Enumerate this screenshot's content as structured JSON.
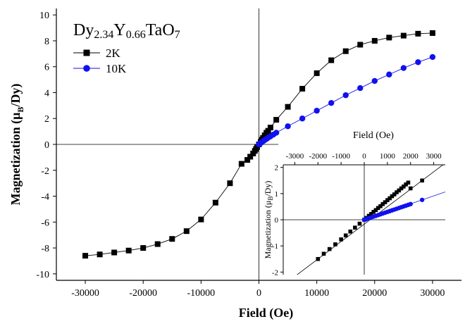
{
  "chart_data": [
    {
      "type": "line",
      "xlabel": "Field (Oe)",
      "ylabel": "Magnetization (μ_B/Dy)",
      "ylabel_main": "Magnetization (μ",
      "ylabel_sub": "B",
      "ylabel_tail": "/Dy)",
      "xlim": [
        -35000,
        35000
      ],
      "ylim": [
        -10.5,
        10.5
      ],
      "xticks": [
        -30000,
        -20000,
        -10000,
        0,
        10000,
        20000,
        30000
      ],
      "xtick_labels": [
        "-30000",
        "-20000",
        "-10000",
        "0",
        "10000",
        "20000",
        "30000"
      ],
      "yticks": [
        -10,
        -8,
        -6,
        -4,
        -2,
        0,
        2,
        4,
        6,
        8,
        10
      ],
      "ytick_labels": [
        "-10",
        "-8",
        "-6",
        "-4",
        "-2",
        "0",
        "2",
        "4",
        "6",
        "8",
        "10"
      ],
      "annotation": {
        "parts": [
          {
            "text": "Dy",
            "sub": false
          },
          {
            "text": "2.34",
            "sub": true
          },
          {
            "text": "Y",
            "sub": false
          },
          {
            "text": "0.66",
            "sub": true
          },
          {
            "text": "TaO",
            "sub": false
          },
          {
            "text": "7",
            "sub": true
          }
        ]
      },
      "legend_position": "top-left",
      "series": [
        {
          "name": "2K",
          "color": "#000000",
          "marker": "square",
          "x": [
            -30000,
            -27500,
            -25000,
            -22500,
            -20000,
            -17500,
            -15000,
            -12500,
            -10000,
            -7500,
            -5000,
            -3000,
            -2000,
            -1500,
            -1000,
            -700,
            -500,
            -300,
            0,
            300,
            500,
            700,
            1000,
            1300,
            1600,
            2000,
            3000,
            5000,
            7500,
            10000,
            12500,
            15000,
            17500,
            20000,
            22500,
            25000,
            27500,
            30000
          ],
          "y": [
            -8.6,
            -8.5,
            -8.35,
            -8.2,
            -8.0,
            -7.7,
            -7.3,
            -6.7,
            -5.8,
            -4.5,
            -3.0,
            -1.5,
            -1.2,
            -0.95,
            -0.7,
            -0.5,
            -0.35,
            -0.2,
            0.0,
            0.2,
            0.35,
            0.5,
            0.7,
            0.9,
            1.05,
            1.3,
            1.9,
            2.9,
            4.3,
            5.5,
            6.5,
            7.2,
            7.7,
            8.0,
            8.25,
            8.4,
            8.55,
            8.6
          ]
        },
        {
          "name": "10K",
          "color": "#1010f0",
          "marker": "circle",
          "x": [
            0,
            300,
            500,
            700,
            1000,
            1300,
            1600,
            2000,
            2500,
            3000,
            5000,
            7500,
            10000,
            12500,
            15000,
            17500,
            20000,
            22500,
            25000,
            27500,
            30000
          ],
          "y": [
            0.0,
            0.1,
            0.17,
            0.24,
            0.33,
            0.42,
            0.52,
            0.62,
            0.76,
            0.9,
            1.4,
            2.0,
            2.6,
            3.2,
            3.8,
            4.35,
            4.9,
            5.4,
            5.9,
            6.35,
            6.75
          ]
        }
      ]
    },
    {
      "type": "line",
      "role": "inset",
      "xlabel": "Field (Oe)",
      "ylabel": "Magnetization (μ_B/Dy)",
      "ylabel_main": "Magnetization (μ",
      "ylabel_sub": "B",
      "ylabel_tail": "/Dy)",
      "xlim": [
        -3500,
        3500
      ],
      "ylim": [
        -2.1,
        2.1
      ],
      "xticks": [
        -3000,
        -2000,
        -1000,
        0,
        1000,
        2000,
        3000
      ],
      "xtick_labels": [
        "-3000",
        "-2000",
        "-1000",
        "0",
        "1000",
        "2000",
        "3000"
      ],
      "yticks": [
        -2,
        -1,
        0,
        1,
        2
      ],
      "ytick_labels": [
        "-2",
        "-1",
        "0",
        "1",
        "2"
      ],
      "xaxis_position": "top",
      "series": [
        {
          "name": "2K",
          "color": "#000000",
          "marker": "square",
          "x": [
            -2000,
            -1750,
            -1500,
            -1250,
            -1000,
            -800,
            -600,
            -400,
            -200,
            0,
            100,
            200,
            300,
            400,
            500,
            600,
            700,
            800,
            900,
            1000,
            1100,
            1200,
            1300,
            1400,
            1500,
            1600,
            1700,
            1800,
            1900,
            2000,
            2500
          ],
          "y": [
            -1.5,
            -1.3,
            -1.12,
            -0.94,
            -0.75,
            -0.6,
            -0.45,
            -0.3,
            -0.15,
            0.0,
            0.07,
            0.15,
            0.22,
            0.3,
            0.37,
            0.45,
            0.52,
            0.6,
            0.67,
            0.75,
            0.82,
            0.9,
            0.97,
            1.05,
            1.12,
            1.2,
            1.27,
            1.35,
            1.42,
            1.2,
            1.5
          ]
        },
        {
          "name": "10K",
          "color": "#1010f0",
          "marker": "circle",
          "x": [
            0,
            100,
            200,
            300,
            400,
            500,
            600,
            700,
            800,
            900,
            1000,
            1100,
            1200,
            1300,
            1400,
            1500,
            1600,
            1700,
            1800,
            1900,
            2000,
            2500
          ],
          "y": [
            0.0,
            0.03,
            0.06,
            0.09,
            0.12,
            0.15,
            0.18,
            0.21,
            0.24,
            0.27,
            0.3,
            0.33,
            0.36,
            0.39,
            0.42,
            0.45,
            0.48,
            0.51,
            0.54,
            0.57,
            0.6,
            0.76
          ]
        }
      ]
    }
  ]
}
